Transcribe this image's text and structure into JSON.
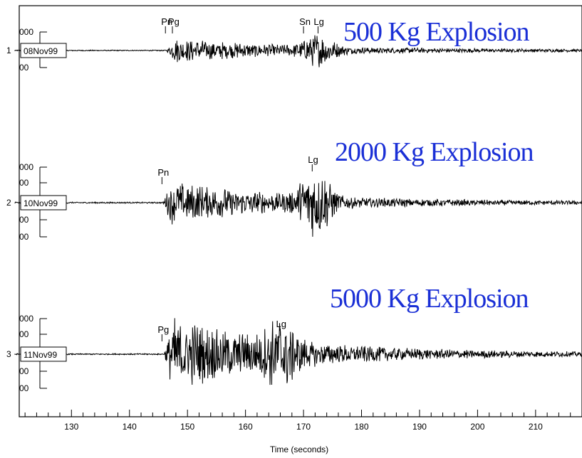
{
  "chart_data": {
    "type": "line",
    "xlabel": "Time (seconds)",
    "xlim": [
      121,
      218
    ],
    "x_ticks": [
      130,
      140,
      150,
      160,
      170,
      180,
      190,
      200,
      210
    ],
    "annotation_color": "#1a2fd6",
    "series": [
      {
        "index": "1",
        "date": "08Nov99",
        "annotation": "500 Kg Explosion",
        "amp_labels": [
          "000",
          "00"
        ],
        "onset": 146.5,
        "noise_amp": 0.04,
        "peak_amp": 0.9,
        "lg_time": 172.5,
        "lg_amp": 1.0,
        "phases": [
          {
            "name": "Pn",
            "t": 146.2
          },
          {
            "name": "Pg",
            "t": 147.4
          },
          {
            "name": "Sn",
            "t": 170.0
          },
          {
            "name": "Lg",
            "t": 172.5
          }
        ]
      },
      {
        "index": "2",
        "date": "10Nov99",
        "annotation": "2000 Kg Explosion",
        "amp_labels": [
          "000",
          "00",
          "00",
          "00"
        ],
        "onset": 145.8,
        "noise_amp": 0.05,
        "peak_amp": 1.6,
        "lg_time": 172.0,
        "lg_amp": 2.2,
        "phases": [
          {
            "name": "Pn",
            "t": 145.6
          },
          {
            "name": "Lg",
            "t": 171.5
          }
        ]
      },
      {
        "index": "3",
        "date": "11Nov99",
        "annotation": "5000 Kg Explosion",
        "amp_labels": [
          "000",
          "00",
          "00",
          "00"
        ],
        "onset": 146.0,
        "noise_amp": 0.05,
        "peak_amp": 2.8,
        "lg_time": 166.0,
        "lg_amp": 1.8,
        "phases": [
          {
            "name": "Pg",
            "t": 145.6
          },
          {
            "name": "Lg",
            "t": 166.0
          }
        ]
      }
    ]
  }
}
